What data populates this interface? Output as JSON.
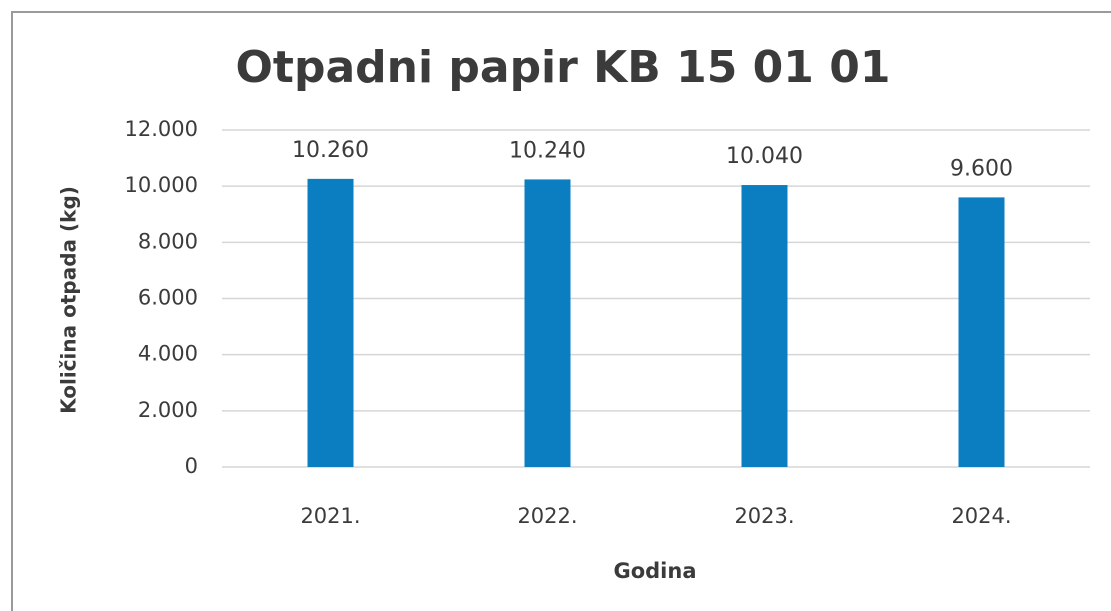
{
  "chart_data": {
    "type": "bar",
    "title": "Otpadni papir KB 15 01 01",
    "x_label": "Godina",
    "y_label": "Količina otpada (kg)",
    "categories": [
      "2021.",
      "2022.",
      "2023.",
      "2024."
    ],
    "values": [
      10260,
      10240,
      10040,
      9600
    ],
    "value_labels": [
      "10.260",
      "10.240",
      "10.040",
      "9.600"
    ],
    "color": "#0b7dc1",
    "ylim": [
      0,
      12000
    ],
    "yticks": [
      0,
      {
        "value": 2000,
        "label": "2.000"
      },
      {
        "value": 4000,
        "label": "4.000"
      },
      {
        "value": 6000,
        "label": "6.000"
      },
      {
        "value": 8000,
        "label": "8.000"
      },
      {
        "value": 10000,
        "label": "10.000"
      },
      {
        "value": 12000,
        "label": "12.000"
      }
    ],
    "grid": true
  }
}
